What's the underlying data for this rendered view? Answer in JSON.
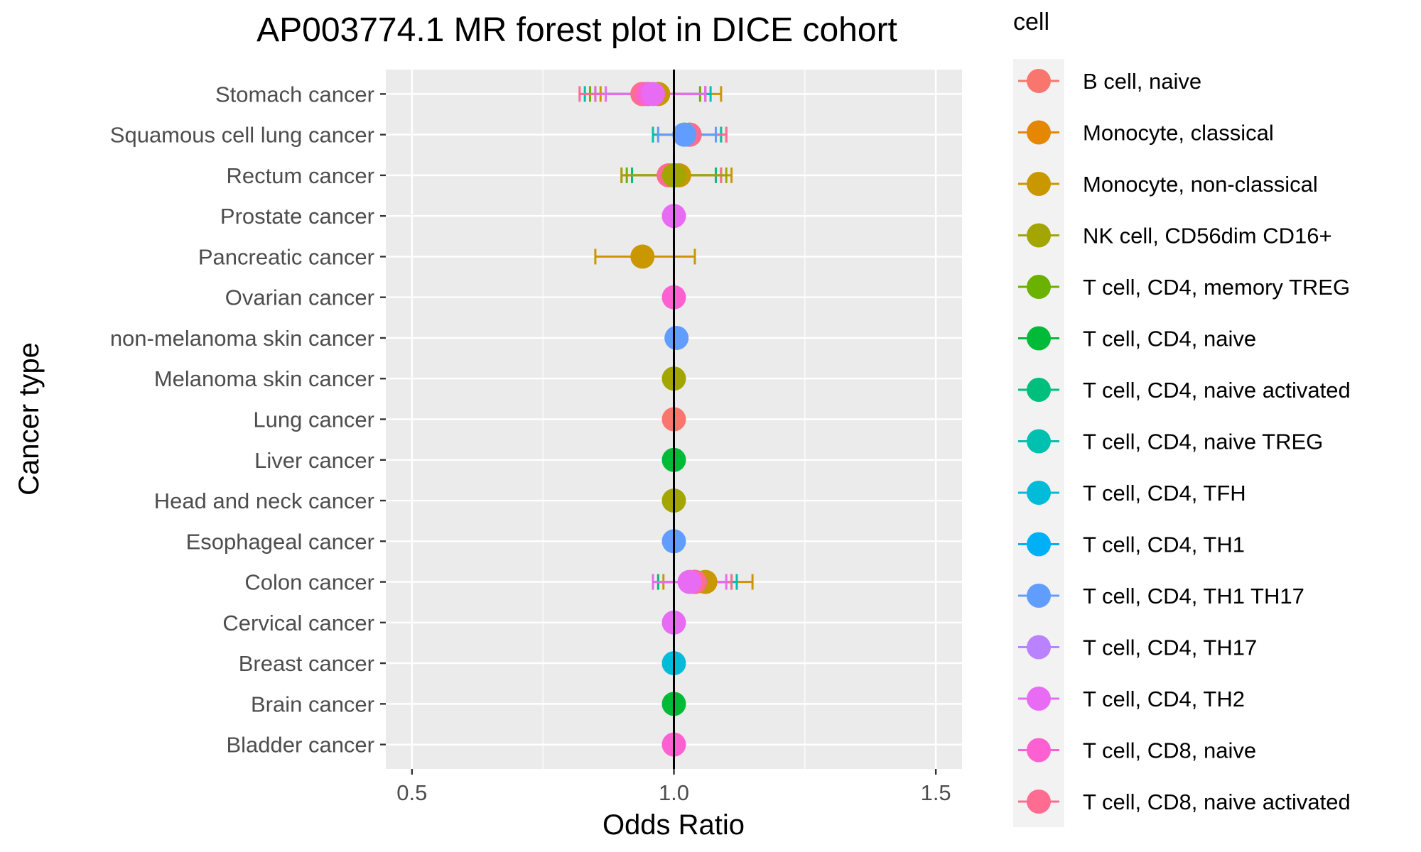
{
  "chart_data": {
    "type": "scatter",
    "title": "AP003774.1 MR forest plot in DICE cohort",
    "xlabel": "Odds Ratio",
    "ylabel": "Cancer type",
    "xlim": [
      0.45,
      1.55
    ],
    "x_ticks": [
      "0.5",
      "1.0",
      "1.5"
    ],
    "x_tick_values": [
      0.5,
      1.0,
      1.5
    ],
    "reference_line": 1.0,
    "grid": true,
    "legend": {
      "title": "cell",
      "placement": "right",
      "entries": [
        {
          "label": "B cell, naive",
          "color": "#F8766D"
        },
        {
          "label": "Monocyte, classical",
          "color": "#E58700"
        },
        {
          "label": "Monocyte, non-classical",
          "color": "#C99800"
        },
        {
          "label": "NK cell, CD56dim CD16+",
          "color": "#A3A500"
        },
        {
          "label": "T cell, CD4, memory TREG",
          "color": "#6BB100"
        },
        {
          "label": "T cell, CD4, naive",
          "color": "#00BA38"
        },
        {
          "label": "T cell, CD4, naive activated",
          "color": "#00BF7D"
        },
        {
          "label": "T cell, CD4, naive TREG",
          "color": "#00C0AF"
        },
        {
          "label": "T cell, CD4, TFH",
          "color": "#00BCD8"
        },
        {
          "label": "T cell, CD4, TH1",
          "color": "#00B0F6"
        },
        {
          "label": "T cell, CD4, TH1 TH17",
          "color": "#619CFF"
        },
        {
          "label": "T cell, CD4, TH17",
          "color": "#B983FF"
        },
        {
          "label": "T cell, CD4, TH2",
          "color": "#E76BF3"
        },
        {
          "label": "T cell, CD8, naive",
          "color": "#FD61D1"
        },
        {
          "label": "T cell, CD8, naive activated",
          "color": "#FF6C91"
        }
      ]
    },
    "categories": [
      "Stomach cancer",
      "Squamous cell lung cancer",
      "Rectum cancer",
      "Prostate cancer",
      "Pancreatic cancer",
      "Ovarian cancer",
      "non-melanoma skin cancer",
      "Melanoma skin cancer",
      "Lung cancer",
      "Liver cancer",
      "Head and neck cancer",
      "Esophageal cancer",
      "Colon cancer",
      "Cervical cancer",
      "Breast cancer",
      "Brain cancer",
      "Bladder cancer"
    ],
    "points": [
      {
        "cancer": "Stomach cancer",
        "cell": "Monocyte, non-classical",
        "or": 0.97,
        "lo": 0.86,
        "hi": 1.09
      },
      {
        "cancer": "Stomach cancer",
        "cell": "T cell, CD4, memory TREG",
        "or": 0.94,
        "lo": 0.84,
        "hi": 1.05
      },
      {
        "cancer": "Stomach cancer",
        "cell": "T cell, CD4, naive activated",
        "or": 0.95,
        "lo": 0.85,
        "hi": 1.06
      },
      {
        "cancer": "Stomach cancer",
        "cell": "T cell, CD4, naive TREG",
        "or": 0.95,
        "lo": 0.83,
        "hi": 1.07
      },
      {
        "cancer": "Stomach cancer",
        "cell": "T cell, CD8, naive activated",
        "or": 0.94,
        "lo": 0.82,
        "hi": 1.06
      },
      {
        "cancer": "Stomach cancer",
        "cell": "T cell, CD8, naive",
        "or": 0.95,
        "lo": 0.85,
        "hi": 1.06
      },
      {
        "cancer": "Stomach cancer",
        "cell": "T cell, CD4, TH2",
        "or": 0.96,
        "lo": 0.87,
        "hi": 1.06
      },
      {
        "cancer": "Squamous cell lung cancer",
        "cell": "Monocyte, non-classical",
        "or": 1.03,
        "lo": 0.96,
        "hi": 1.09
      },
      {
        "cancer": "Squamous cell lung cancer",
        "cell": "T cell, CD4, memory TREG",
        "or": 1.03,
        "lo": 0.96,
        "hi": 1.1
      },
      {
        "cancer": "Squamous cell lung cancer",
        "cell": "T cell, CD4, naive TREG",
        "or": 1.02,
        "lo": 0.96,
        "hi": 1.09
      },
      {
        "cancer": "Squamous cell lung cancer",
        "cell": "T cell, CD8, naive activated",
        "or": 1.03,
        "lo": 0.97,
        "hi": 1.1
      },
      {
        "cancer": "Squamous cell lung cancer",
        "cell": "T cell, CD4, TH1 TH17",
        "or": 1.02,
        "lo": 0.97,
        "hi": 1.08
      },
      {
        "cancer": "Rectum cancer",
        "cell": "Monocyte, non-classical",
        "or": 1.01,
        "lo": 0.92,
        "hi": 1.11
      },
      {
        "cancer": "Rectum cancer",
        "cell": "T cell, CD4, memory TREG",
        "or": 1.0,
        "lo": 0.91,
        "hi": 1.09
      },
      {
        "cancer": "Rectum cancer",
        "cell": "T cell, CD4, naive activated",
        "or": 1.0,
        "lo": 0.92,
        "hi": 1.08
      },
      {
        "cancer": "Rectum cancer",
        "cell": "T cell, CD8, naive activated",
        "or": 0.99,
        "lo": 0.9,
        "hi": 1.09
      },
      {
        "cancer": "Rectum cancer",
        "cell": "NK cell, CD56dim CD16+",
        "or": 1.0,
        "lo": 0.9,
        "hi": 1.1
      },
      {
        "cancer": "Prostate cancer",
        "cell": "T cell, CD4, TH2",
        "or": 1.0,
        "lo": 0.99,
        "hi": 1.01
      },
      {
        "cancer": "Pancreatic cancer",
        "cell": "Monocyte, non-classical",
        "or": 0.94,
        "lo": 0.85,
        "hi": 1.04
      },
      {
        "cancer": "Ovarian cancer",
        "cell": "T cell, CD8, naive",
        "or": 1.0,
        "lo": 0.99,
        "hi": 1.01
      },
      {
        "cancer": "non-melanoma skin cancer",
        "cell": "T cell, CD4, TH1 TH17",
        "or": 1.005,
        "lo": 0.995,
        "hi": 1.015
      },
      {
        "cancer": "Melanoma skin cancer",
        "cell": "NK cell, CD56dim CD16+",
        "or": 1.0,
        "lo": 0.99,
        "hi": 1.01
      },
      {
        "cancer": "Lung cancer",
        "cell": "B cell, naive",
        "or": 1.0,
        "lo": 0.99,
        "hi": 1.01
      },
      {
        "cancer": "Liver cancer",
        "cell": "T cell, CD4, naive",
        "or": 1.0,
        "lo": 0.99,
        "hi": 1.01
      },
      {
        "cancer": "Head and neck cancer",
        "cell": "NK cell, CD56dim CD16+",
        "or": 1.0,
        "lo": 0.99,
        "hi": 1.01
      },
      {
        "cancer": "Esophageal cancer",
        "cell": "T cell, CD4, TH1 TH17",
        "or": 1.0,
        "lo": 0.99,
        "hi": 1.01
      },
      {
        "cancer": "Colon cancer",
        "cell": "Monocyte, non-classical",
        "or": 1.06,
        "lo": 0.98,
        "hi": 1.15
      },
      {
        "cancer": "Colon cancer",
        "cell": "T cell, CD4, memory TREG",
        "or": 1.04,
        "lo": 0.97,
        "hi": 1.12
      },
      {
        "cancer": "Colon cancer",
        "cell": "T cell, CD4, naive activated",
        "or": 1.04,
        "lo": 0.97,
        "hi": 1.11
      },
      {
        "cancer": "Colon cancer",
        "cell": "T cell, CD4, naive TREG",
        "or": 1.04,
        "lo": 0.96,
        "hi": 1.12
      },
      {
        "cancer": "Colon cancer",
        "cell": "T cell, CD8, naive activated",
        "or": 1.04,
        "lo": 0.96,
        "hi": 1.11
      },
      {
        "cancer": "Colon cancer",
        "cell": "T cell, CD4, TH2",
        "or": 1.03,
        "lo": 0.96,
        "hi": 1.1
      },
      {
        "cancer": "Cervical cancer",
        "cell": "T cell, CD4, TH2",
        "or": 1.0,
        "lo": 0.99,
        "hi": 1.01
      },
      {
        "cancer": "Breast cancer",
        "cell": "T cell, CD4, TFH",
        "or": 1.0,
        "lo": 0.99,
        "hi": 1.01
      },
      {
        "cancer": "Brain cancer",
        "cell": "T cell, CD4, naive",
        "or": 1.0,
        "lo": 0.99,
        "hi": 1.01
      },
      {
        "cancer": "Bladder cancer",
        "cell": "T cell, CD8, naive",
        "or": 1.0,
        "lo": 0.99,
        "hi": 1.01
      }
    ]
  }
}
